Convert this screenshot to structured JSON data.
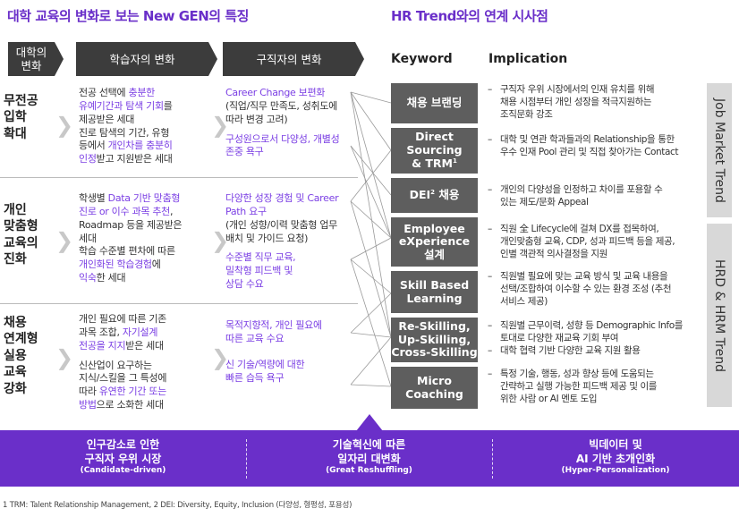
{
  "titles": {
    "left": "대학 교육의 변화로 보는 New GEN의 특징",
    "right": "HR Trend와의 연계 시사점"
  },
  "headers": {
    "university": [
      "대학의",
      "변화"
    ],
    "learner": "학습자의 변화",
    "jobseeker": "구직자의 변화",
    "keyword": "Keyword",
    "implication": "Implication"
  },
  "rows": [
    {
      "label": [
        "무전공",
        "입학",
        "확대"
      ],
      "learner": [
        [
          {
            "t": "전공 선택에 "
          },
          {
            "t": "충분한",
            "p": true
          }
        ],
        [
          {
            "t": "유예기간과 탐색 기회",
            "p": true
          },
          {
            "t": "를"
          }
        ],
        [
          {
            "t": "제공받은 세대"
          }
        ],
        [
          {
            "t": "진로 탐색의 기간, 유형"
          }
        ],
        [
          {
            "t": "등에서 "
          },
          {
            "t": "개인차를 충분히",
            "p": true
          }
        ],
        [
          {
            "t": "인정",
            "p": true
          },
          {
            "t": "받고 지원받은 세대"
          }
        ]
      ],
      "jobseeker": [
        [
          {
            "t": "Career Change 보편화",
            "p": true
          }
        ],
        [
          {
            "t": "(직업/직무 만족도, 성취도에"
          }
        ],
        [
          {
            "t": "따라 변경 고려)"
          }
        ],
        [
          {
            "t": " "
          }
        ],
        [
          {
            "t": "구성원으로서 다양성, 개별성",
            "p": true
          }
        ],
        [
          {
            "t": "존중 욕구",
            "p": true
          }
        ]
      ]
    },
    {
      "label": [
        "개인",
        "맞춤형",
        "교육의",
        "진화"
      ],
      "learner": [
        [
          {
            "t": "학생별 "
          },
          {
            "t": "Data 기반 맞춤형",
            "p": true
          }
        ],
        [
          {
            "t": "진로 or 이수 과목 추천",
            "p": true
          },
          {
            "t": ","
          }
        ],
        [
          {
            "t": "Roadmap 등을 제공받은"
          }
        ],
        [
          {
            "t": "세대"
          }
        ],
        [
          {
            "t": "학습 수준별 편차에 따른"
          }
        ],
        [
          {
            "t": "개인화된 학습경험",
            "p": true
          },
          {
            "t": "에"
          }
        ],
        [
          {
            "t": "익숙",
            "p": true
          },
          {
            "t": "한 세대"
          }
        ]
      ],
      "jobseeker": [
        [
          {
            "t": "다양한 성장 경험 및 Career",
            "p": true
          }
        ],
        [
          {
            "t": "Path 요구",
            "p": true
          }
        ],
        [
          {
            "t": "(개인 성향/이력 맞춤형 업무"
          }
        ],
        [
          {
            "t": "배치 및 가이드 요청)"
          }
        ],
        [
          {
            "t": " "
          }
        ],
        [
          {
            "t": "수준별 직무 교육,",
            "p": true
          }
        ],
        [
          {
            "t": "밀착형 피드백 및",
            "p": true
          }
        ],
        [
          {
            "t": "상담 수요",
            "p": true
          }
        ]
      ]
    },
    {
      "label": [
        "채용",
        "연계형",
        "실용",
        "교육",
        "강화"
      ],
      "learner": [
        [
          {
            "t": "개인 필요에 따른 기존"
          }
        ],
        [
          {
            "t": "과목 조합, "
          },
          {
            "t": "자기설계",
            "p": true
          }
        ],
        [
          {
            "t": "전공을 지지",
            "p": true
          },
          {
            "t": "받은 세대"
          }
        ],
        [
          {
            "t": " "
          }
        ],
        [
          {
            "t": "신산업이 요구하는"
          }
        ],
        [
          {
            "t": "지식/스킬을 그 특성에"
          }
        ],
        [
          {
            "t": "따라 "
          },
          {
            "t": "유연한 기간 또는",
            "p": true
          }
        ],
        [
          {
            "t": "방법",
            "p": true
          },
          {
            "t": "으로 소화한 세대"
          }
        ]
      ],
      "jobseeker": [
        [
          {
            "t": "목적지향적, 개인 필요에",
            "p": true
          }
        ],
        [
          {
            "t": "따른 교육 수요",
            "p": true
          }
        ],
        [
          {
            "t": " "
          }
        ],
        [
          {
            "t": " "
          }
        ],
        [
          {
            "t": "신 기술/역량에 대한",
            "p": true
          }
        ],
        [
          {
            "t": "빠른 습득 욕구",
            "p": true
          }
        ]
      ]
    }
  ],
  "keywords": [
    {
      "lines": [
        "채용 브랜딩"
      ]
    },
    {
      "lines": [
        "Direct",
        "Sourcing",
        "& TRM"
      ],
      "sup": "1"
    },
    {
      "lines": [
        "DEI 채용"
      ],
      "sup": "2"
    },
    {
      "lines": [
        "Employee",
        "eXperience",
        "설계"
      ]
    },
    {
      "lines": [
        "Skill Based",
        "Learning"
      ]
    },
    {
      "lines": [
        "Re-Skilling,",
        "Up-Skilling,",
        "Cross-Skilling"
      ]
    },
    {
      "lines": [
        "Micro",
        "Coaching"
      ]
    }
  ],
  "implications": [
    [
      [
        "구직자 우위 시장에서의 인재 유치를 위해",
        "채용 시점부터 개인 성장을 적극지원하는",
        "조직문화 강조"
      ]
    ],
    [
      [
        "대학 및 연관 학과들과의 Relationship을 통한",
        "우수 인재 Pool 관리 및 직접 찾아가는 Contact"
      ]
    ],
    [
      [
        "개인의 다양성을 인정하고 차이를 포용할 수",
        "있는 제도/문화 Appeal"
      ]
    ],
    [
      [
        "직원 全 Lifecycle에 걸쳐 DX를 접목하여,",
        "개인맞춤형 교육, CDP, 성과 피드백 등을 제공,",
        "인별 객관적 의사결정을 지원"
      ]
    ],
    [
      [
        "직원별 필요에 맞는 교육 방식 및 교육 내용을",
        "선택/조합하여 이수할 수 있는 환경 조성 (추천",
        "서비스 제공)"
      ]
    ],
    [
      [
        "직원별 근무이력, 성향 등 Demographic Info를",
        "토대로 다양한 재교육 기회 부여"
      ],
      [
        "대학 협력 기반 다양한 교육 지원 활용"
      ]
    ],
    [
      [
        "특정 기술, 행동, 성과 향상 등에 도움되는",
        "간략하고 실행 가능한 피드백 제공 및 이를",
        "위한 사람 or AI 멘토 도입"
      ]
    ]
  ],
  "side_labels": [
    "Job Market Trend",
    "HRD & HRM Trend"
  ],
  "band": [
    {
      "main": [
        "인구감소로 인한",
        "구직자 우위 시장"
      ],
      "sub": "(Candidate-driven)"
    },
    {
      "main": [
        "기술혁신에 따른",
        "일자리 대변화"
      ],
      "sub": "(Great Reshuffling)"
    },
    {
      "main": [
        "빅데이터 및",
        "AI 기반 초개인화"
      ],
      "sub": "(Hyper-Personalization)"
    }
  ],
  "footnote": "1 TRM: Talent Relationship Management, 2 DEI: Diversity, Equity, Inclusion (다양성, 형평성, 포용성)",
  "colors": {
    "accent": "#6a2fc9",
    "highlight": "#7b3fe4",
    "header": "#3c3c3c",
    "keyword_box": "#5e5e5e",
    "side_box": "#d8d8d8"
  }
}
